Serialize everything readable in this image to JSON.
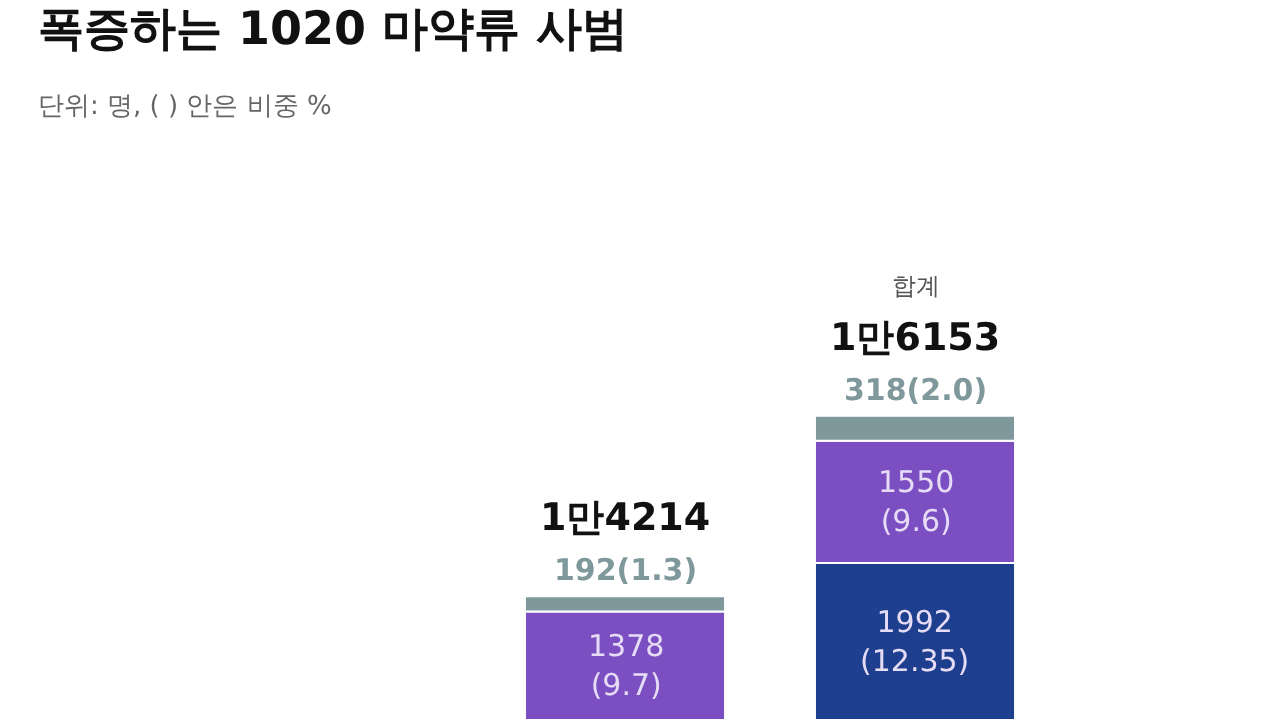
{
  "chart_data": {
    "type": "bar",
    "title": "폭증하는 1020 마약류 사범",
    "subtitle": "단위: 명, ( ) 안은 비중 %",
    "categories": [
      null,
      null
    ],
    "stacked": true,
    "tick_labels": false,
    "series": [
      {
        "color": "#1e3f8e",
        "values": [
          null,
          1992
        ],
        "value_labels": [
          null,
          "1992\n(12.35)"
        ]
      },
      {
        "color": "#7b4fc2",
        "values": [
          1378,
          1550
        ],
        "value_labels": [
          "1378\n(9.7)",
          "1550\n(9.6)"
        ]
      },
      {
        "color": "#7f989c",
        "values": [
          192,
          318
        ],
        "value_labels": [
          "192(1.3)",
          "318(2.0)"
        ]
      }
    ],
    "totals": [
      "1만4214",
      "1만6153"
    ],
    "annotations": [
      "합계"
    ]
  }
}
